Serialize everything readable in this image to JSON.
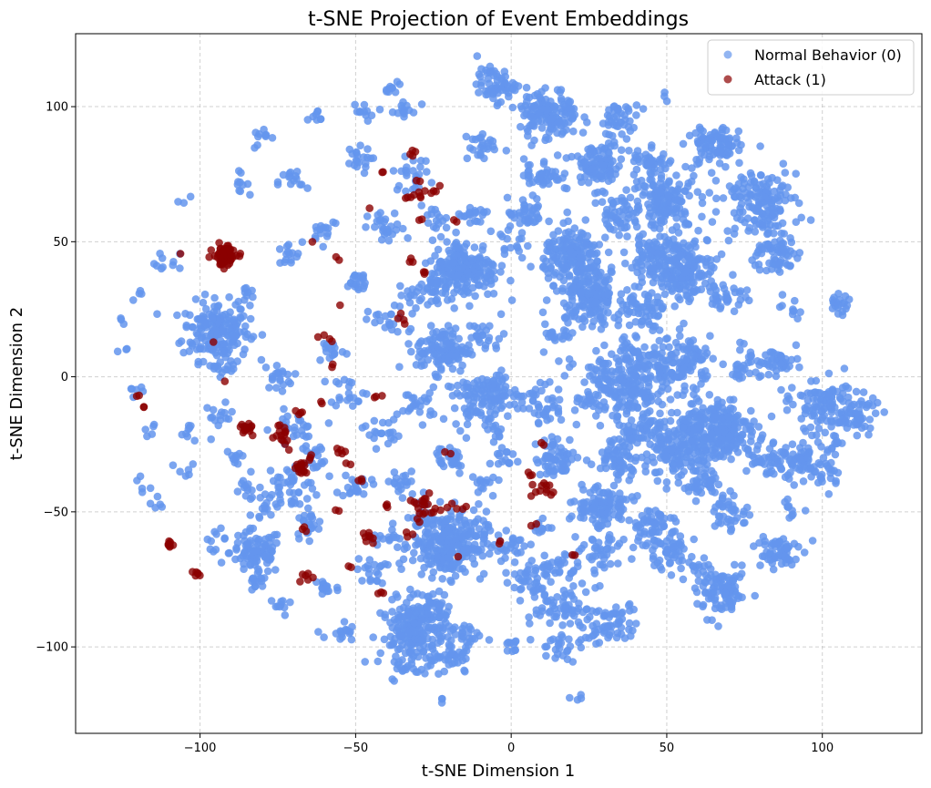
{
  "chart_data": {
    "type": "scatter",
    "title": "t-SNE Projection of Event Embeddings",
    "xlabel": "t-SNE Dimension 1",
    "ylabel": "t-SNE Dimension 2",
    "xlim": [
      -140,
      132
    ],
    "ylim": [
      -132,
      127
    ],
    "xticks": [
      -100,
      -50,
      0,
      50,
      100
    ],
    "xtick_labels": [
      "−100",
      "−50",
      "0",
      "50",
      "100"
    ],
    "yticks": [
      -100,
      -50,
      0,
      50,
      100
    ],
    "ytick_labels": [
      "−100",
      "−50",
      "0",
      "50",
      "100"
    ],
    "grid": true,
    "legend_position": "top-right",
    "series": [
      {
        "name": "Normal Behavior (0)",
        "color": "#6495ed",
        "clusters": [
          [
            -125,
            20,
            2,
            3
          ],
          [
            -124,
            10,
            2,
            3
          ],
          [
            -120,
            -5,
            3,
            6
          ],
          [
            -117,
            -20,
            3,
            5
          ],
          [
            -118,
            -38,
            3,
            5
          ],
          [
            -113,
            -48,
            3,
            5
          ],
          [
            -120,
            30,
            2,
            4
          ],
          [
            -110,
            42,
            4,
            10
          ],
          [
            -105,
            65,
            2,
            3
          ],
          [
            -103,
            -20,
            3,
            8
          ],
          [
            -105,
            -35,
            3,
            6
          ],
          [
            -95,
            17,
            9,
            180
          ],
          [
            -92,
            5,
            4,
            20
          ],
          [
            -94,
            -15,
            4,
            15
          ],
          [
            -88,
            -30,
            3,
            10
          ],
          [
            -95,
            -60,
            3,
            10
          ],
          [
            -85,
            -42,
            3,
            12
          ],
          [
            -88,
            72,
            3,
            10
          ],
          [
            -80,
            88,
            3,
            10
          ],
          [
            -85,
            30,
            3,
            10
          ],
          [
            -82,
            -65,
            7,
            90
          ],
          [
            -82,
            -77,
            3,
            15
          ],
          [
            -70,
            -40,
            8,
            50
          ],
          [
            -78,
            -48,
            3,
            10
          ],
          [
            -65,
            -55,
            4,
            20
          ],
          [
            -70,
            -20,
            6,
            30
          ],
          [
            -75,
            0,
            4,
            20
          ],
          [
            -72,
            45,
            4,
            15
          ],
          [
            -70,
            72,
            4,
            15
          ],
          [
            -74,
            -85,
            3,
            10
          ],
          [
            -60,
            -78,
            4,
            15
          ],
          [
            -62,
            -30,
            4,
            15
          ],
          [
            -58,
            10,
            4,
            15
          ],
          [
            -60,
            55,
            4,
            15
          ],
          [
            -62,
            95,
            3,
            8
          ],
          [
            -55,
            -95,
            4,
            15
          ],
          [
            -50,
            -40,
            4,
            20
          ],
          [
            -52,
            -5,
            5,
            20
          ],
          [
            -50,
            35,
            4,
            20
          ],
          [
            -50,
            80,
            4,
            20
          ],
          [
            -48,
            98,
            3,
            10
          ],
          [
            -45,
            -72,
            4,
            20
          ],
          [
            -40,
            -60,
            4,
            15
          ],
          [
            -42,
            -20,
            5,
            20
          ],
          [
            -40,
            20,
            5,
            20
          ],
          [
            -40,
            55,
            5,
            25
          ],
          [
            -35,
            -40,
            5,
            20
          ],
          [
            -30,
            -10,
            5,
            25
          ],
          [
            -30,
            30,
            5,
            20
          ],
          [
            -32,
            75,
            5,
            25
          ],
          [
            -35,
            98,
            4,
            15
          ],
          [
            -28,
            -52,
            5,
            20
          ],
          [
            -25,
            58,
            4,
            15
          ],
          [
            -25,
            -85,
            5,
            30
          ],
          [
            -30,
            -95,
            10,
            220
          ],
          [
            -18,
            -105,
            5,
            30
          ],
          [
            -35,
            -108,
            3,
            10
          ],
          [
            -20,
            -62,
            10,
            260
          ],
          [
            -22,
            10,
            7,
            120
          ],
          [
            -20,
            -30,
            5,
            30
          ],
          [
            -15,
            40,
            9,
            200
          ],
          [
            -25,
            35,
            4,
            20
          ],
          [
            -10,
            -10,
            7,
            60
          ],
          [
            -8,
            15,
            5,
            25
          ],
          [
            -5,
            -5,
            6,
            50
          ],
          [
            -5,
            108,
            5,
            60
          ],
          [
            -10,
            85,
            5,
            25
          ],
          [
            -12,
            60,
            4,
            20
          ],
          [
            -10,
            -40,
            4,
            15
          ],
          [
            -15,
            -95,
            4,
            15
          ],
          [
            -2,
            -30,
            4,
            15
          ],
          [
            -5,
            -20,
            3,
            10
          ],
          [
            0,
            -62,
            4,
            20
          ],
          [
            0,
            -100,
            3,
            10
          ],
          [
            5,
            -75,
            6,
            40
          ],
          [
            5,
            60,
            5,
            40
          ],
          [
            10,
            75,
            5,
            40
          ],
          [
            10,
            -10,
            6,
            40
          ],
          [
            15,
            15,
            5,
            20
          ],
          [
            10,
            -55,
            3,
            10
          ],
          [
            15,
            -30,
            6,
            60
          ],
          [
            15,
            -70,
            5,
            30
          ],
          [
            10,
            -85,
            5,
            20
          ],
          [
            15,
            -100,
            5,
            25
          ],
          [
            12,
            97,
            8,
            140
          ],
          [
            20,
            45,
            8,
            150
          ],
          [
            25,
            30,
            9,
            180
          ],
          [
            20,
            -85,
            6,
            40
          ],
          [
            22,
            -50,
            3,
            10
          ],
          [
            28,
            78,
            7,
            100
          ],
          [
            30,
            -48,
            7,
            100
          ],
          [
            35,
            -5,
            12,
            220
          ],
          [
            30,
            -65,
            6,
            40
          ],
          [
            28,
            -95,
            5,
            30
          ],
          [
            35,
            -90,
            5,
            30
          ],
          [
            35,
            -30,
            6,
            60
          ],
          [
            35,
            60,
            6,
            50
          ],
          [
            35,
            95,
            5,
            40
          ],
          [
            40,
            8,
            6,
            40
          ],
          [
            42,
            -20,
            6,
            50
          ],
          [
            45,
            80,
            5,
            40
          ],
          [
            45,
            45,
            6,
            50
          ],
          [
            42,
            25,
            6,
            50
          ],
          [
            45,
            -55,
            6,
            50
          ],
          [
            50,
            -65,
            6,
            50
          ],
          [
            52,
            -30,
            8,
            100
          ],
          [
            50,
            65,
            9,
            140
          ],
          [
            55,
            40,
            10,
            200
          ],
          [
            55,
            5,
            8,
            120
          ],
          [
            60,
            -70,
            3,
            10
          ],
          [
            60,
            -20,
            8,
            120
          ],
          [
            62,
            -40,
            5,
            40
          ],
          [
            65,
            85,
            7,
            90
          ],
          [
            70,
            -20,
            8,
            150
          ],
          [
            70,
            30,
            5,
            30
          ],
          [
            70,
            -50,
            6,
            40
          ],
          [
            68,
            -80,
            7,
            100
          ],
          [
            75,
            5,
            5,
            30
          ],
          [
            80,
            65,
            10,
            150
          ],
          [
            82,
            -30,
            6,
            40
          ],
          [
            85,
            -65,
            6,
            60
          ],
          [
            85,
            45,
            6,
            60
          ],
          [
            88,
            5,
            6,
            40
          ],
          [
            90,
            25,
            3,
            10
          ],
          [
            90,
            -50,
            3,
            10
          ],
          [
            95,
            -30,
            8,
            80
          ],
          [
            100,
            -10,
            8,
            80
          ],
          [
            105,
            27,
            3,
            20
          ],
          [
            110,
            -15,
            7,
            60
          ],
          [
            100,
            -35,
            4,
            15
          ],
          [
            50,
            104,
            2,
            3
          ],
          [
            -38,
            107,
            3,
            10
          ],
          [
            -22,
            -118,
            2,
            3
          ],
          [
            22,
            -118,
            2,
            4
          ],
          [
            0,
            50,
            4,
            15
          ],
          [
            -15,
            -5,
            4,
            15
          ]
        ]
      },
      {
        "name": "Attack (1)",
        "color": "#8b0000",
        "clusters": [
          [
            -92,
            45,
            3,
            80
          ],
          [
            -110,
            -62,
            1,
            8
          ],
          [
            -101,
            -73,
            1,
            6
          ],
          [
            -106,
            45,
            0.5,
            1
          ],
          [
            -96,
            13,
            0.5,
            1
          ],
          [
            -92,
            -2,
            0.5,
            1
          ],
          [
            -120,
            -7,
            0.5,
            2
          ],
          [
            -118,
            -11,
            0.5,
            2
          ],
          [
            -85,
            -19,
            2,
            15
          ],
          [
            -74,
            -22,
            4,
            15
          ],
          [
            -68,
            -14,
            1,
            4
          ],
          [
            -68,
            -34,
            2,
            15
          ],
          [
            -65,
            -30,
            1,
            3
          ],
          [
            -66,
            -75,
            2,
            6
          ],
          [
            -66,
            -56,
            1,
            3
          ],
          [
            -64,
            50,
            0.5,
            1
          ],
          [
            -60,
            -10,
            1,
            2
          ],
          [
            -60,
            14,
            2,
            4
          ],
          [
            -58,
            4,
            1,
            2
          ],
          [
            -55,
            -27,
            2,
            5
          ],
          [
            -52,
            -32,
            1,
            2
          ],
          [
            -55,
            -50,
            1,
            2
          ],
          [
            -56,
            44,
            1,
            2
          ],
          [
            -55,
            27,
            0.5,
            1
          ],
          [
            -52,
            -70,
            1,
            2
          ],
          [
            -48,
            -38,
            1,
            3
          ],
          [
            -46,
            62,
            0.5,
            1
          ],
          [
            -46,
            -60,
            2,
            8
          ],
          [
            -42,
            -80,
            1,
            3
          ],
          [
            -40,
            -47,
            1,
            3
          ],
          [
            -43,
            -7,
            1,
            3
          ],
          [
            -42,
            75,
            1,
            2
          ],
          [
            -35,
            22,
            2,
            4
          ],
          [
            -32,
            83,
            2,
            4
          ],
          [
            -30,
            68,
            3,
            10
          ],
          [
            -30,
            -47,
            3,
            15
          ],
          [
            -33,
            -58,
            1,
            3
          ],
          [
            -30,
            -53,
            1,
            2
          ],
          [
            -32,
            43,
            2,
            3
          ],
          [
            -30,
            58,
            1,
            2
          ],
          [
            -28,
            38,
            1,
            3
          ],
          [
            -25,
            -50,
            1,
            3
          ],
          [
            -25,
            70,
            2,
            4
          ],
          [
            -20,
            -49,
            2,
            4
          ],
          [
            -20,
            -28,
            1,
            2
          ],
          [
            -18,
            58,
            1,
            2
          ],
          [
            -15,
            -48,
            1,
            2
          ],
          [
            -17,
            -67,
            0.5,
            1
          ],
          [
            -3,
            -61,
            1,
            2
          ],
          [
            6,
            -36,
            1,
            3
          ],
          [
            10,
            -42,
            3,
            12
          ],
          [
            10,
            -25,
            1,
            2
          ],
          [
            7,
            -55,
            1,
            2
          ],
          [
            20,
            -66,
            1,
            2
          ]
        ]
      }
    ]
  }
}
